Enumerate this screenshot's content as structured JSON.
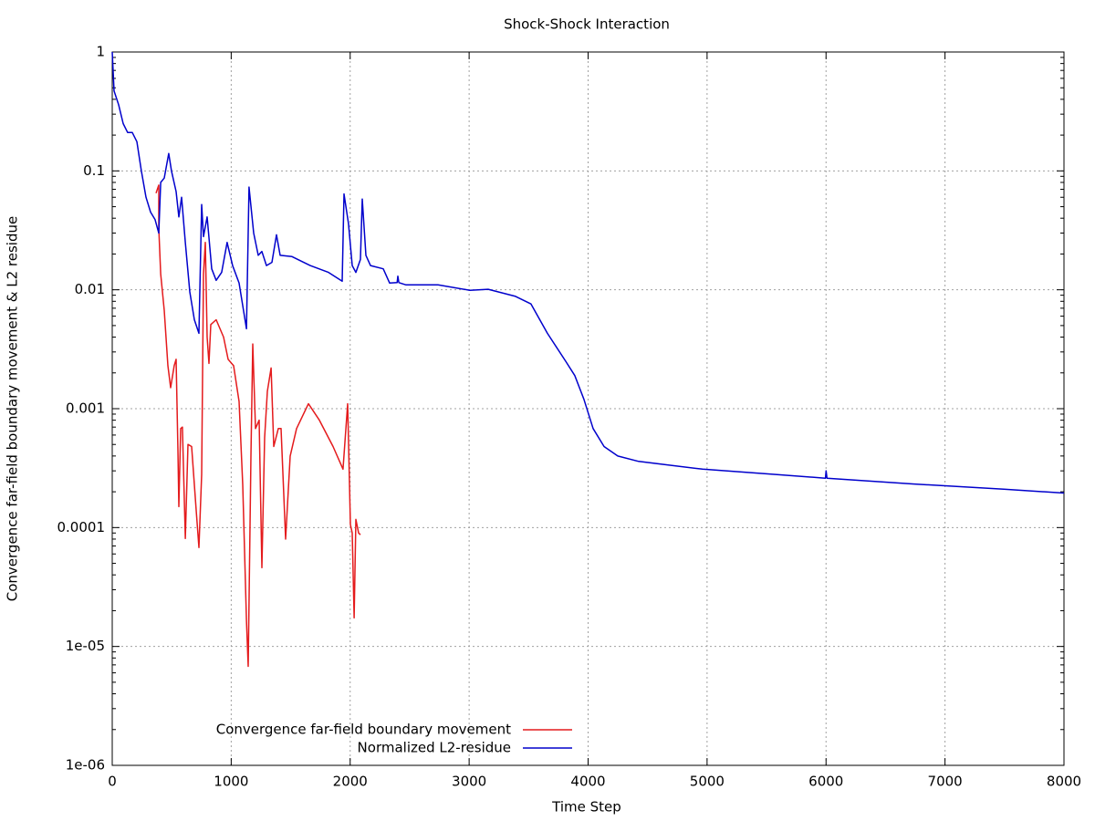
{
  "chart_data": {
    "type": "line",
    "title": "Shock-Shock Interaction",
    "x_label": "Time Step",
    "y_label": "Convergence far-field boundary movement & L2 residue",
    "xlim": [
      0,
      8000
    ],
    "xticks": [
      0,
      1000,
      2000,
      3000,
      4000,
      5000,
      6000,
      7000,
      8000
    ],
    "ylim": [
      1e-06,
      1
    ],
    "log_y": true,
    "yticks": [
      1,
      0.1,
      0.01,
      0.001,
      0.0001,
      {
        "value": 1e-05,
        "label": "1e-05"
      },
      {
        "value": 1e-06,
        "label": "1e-06"
      }
    ],
    "grid": true,
    "legend": "bottom left",
    "series": [
      {
        "name": "Convergence far-field boundary movement",
        "color": "#e41a1c",
        "x": [
          368,
          391,
          391,
          407,
          437,
          468,
          491,
          521,
          537,
          552,
          560,
          575,
          590,
          614,
          637,
          667,
          706,
          729,
          752,
          767,
          782,
          798,
          813,
          828,
          874,
          936,
          974,
          1020,
          1066,
          1097,
          1128,
          1143,
          1166,
          1181,
          1204,
          1235,
          1258,
          1281,
          1304,
          1335,
          1358,
          1396,
          1419,
          1457,
          1496,
          1549,
          1649,
          1741,
          1856,
          1940,
          1979,
          2002,
          2017,
          2033,
          2048,
          2071,
          2086
        ],
        "values": [
          0.065,
          0.076,
          0.033,
          0.0136,
          0.0067,
          0.0023,
          0.0015,
          0.0023,
          0.0026,
          0.00044,
          0.00015,
          0.00068,
          0.0007,
          8.1e-05,
          0.0005,
          0.00048,
          0.00014,
          6.8e-05,
          0.00028,
          0.0136,
          0.025,
          0.004,
          0.0024,
          0.0051,
          0.0056,
          0.004,
          0.0026,
          0.0023,
          0.00115,
          0.00023,
          1.66e-05,
          6.8e-06,
          0.0004,
          0.0035,
          0.00068,
          0.0008,
          4.6e-05,
          0.00057,
          0.0014,
          0.0022,
          0.00048,
          0.00068,
          0.00068,
          8e-05,
          0.0004,
          0.00068,
          0.0011,
          0.0008,
          0.00048,
          0.00031,
          0.0011,
          0.000106,
          9e-05,
          1.74e-05,
          0.000117,
          9e-05,
          8.7e-05
        ]
      },
      {
        "name": "Normalized L2-residue",
        "color": "#0000cc",
        "x": [
          0,
          15,
          54,
          92,
          130,
          169,
          207,
          245,
          284,
          322,
          360,
          391,
          407,
          437,
          475,
          498,
          537,
          560,
          583,
          614,
          652,
          690,
          729,
          752,
          767,
          798,
          836,
          874,
          920,
          966,
          1012,
          1066,
          1128,
          1150,
          1189,
          1227,
          1258,
          1296,
          1342,
          1381,
          1411,
          1511,
          1664,
          1818,
          1933,
          1948,
          1986,
          2017,
          2048,
          2086,
          2102,
          2132,
          2171,
          2278,
          2332,
          2395,
          2401,
          2409,
          2470,
          2738,
          3006,
          3160,
          3390,
          3520,
          3658,
          3812,
          3888,
          3965,
          4042,
          4134,
          4249,
          4425,
          4962,
          5576,
          5995,
          6000,
          6008,
          6727,
          7494,
          8000
        ],
        "values": [
          1,
          0.47,
          0.36,
          0.25,
          0.21,
          0.21,
          0.176,
          0.1,
          0.06,
          0.045,
          0.039,
          0.03,
          0.08,
          0.087,
          0.14,
          0.1,
          0.067,
          0.041,
          0.06,
          0.025,
          0.0096,
          0.0056,
          0.0043,
          0.052,
          0.028,
          0.041,
          0.015,
          0.012,
          0.014,
          0.025,
          0.016,
          0.0114,
          0.0047,
          0.073,
          0.03,
          0.0195,
          0.021,
          0.016,
          0.017,
          0.029,
          0.0195,
          0.019,
          0.016,
          0.014,
          0.0118,
          0.064,
          0.036,
          0.016,
          0.014,
          0.018,
          0.058,
          0.0195,
          0.016,
          0.015,
          0.0114,
          0.0115,
          0.013,
          0.0115,
          0.011,
          0.011,
          0.0099,
          0.0101,
          0.0088,
          0.0076,
          0.0043,
          0.0025,
          0.0019,
          0.0012,
          0.00068,
          0.00048,
          0.0004,
          0.00036,
          0.00031,
          0.00028,
          0.00026,
          0.0003,
          0.00026,
          0.000233,
          0.00021,
          0.000195
        ]
      }
    ]
  }
}
